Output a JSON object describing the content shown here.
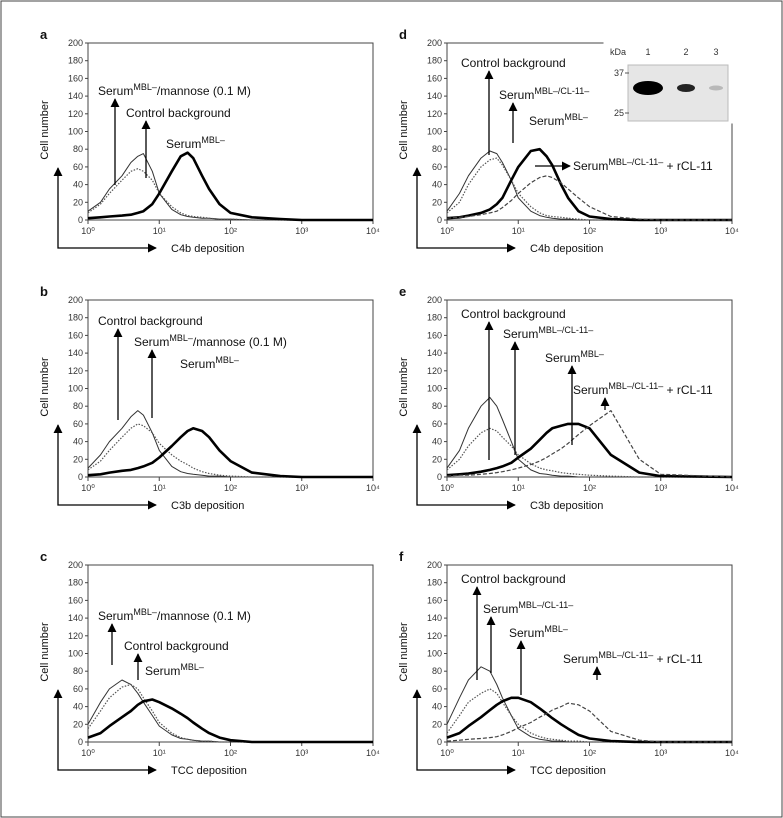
{
  "chart_data": [
    {
      "type": "line",
      "letter": "a",
      "ylabel": "Cell number",
      "xlabel": "C4b deposition",
      "xscale": "log",
      "xlim": [
        1,
        10000
      ],
      "ylim": [
        0,
        200
      ],
      "xticks": [
        {
          "value": 1,
          "label": "10⁰"
        },
        {
          "value": 10,
          "label": "10¹"
        },
        {
          "value": 100,
          "label": "10²"
        },
        {
          "value": 1000,
          "label": "10³"
        },
        {
          "value": 10000,
          "label": "10⁴"
        }
      ],
      "yticks": [
        0,
        20,
        40,
        60,
        80,
        100,
        120,
        140,
        160,
        180,
        200
      ],
      "x": [
        1,
        1.5,
        2,
        3,
        4,
        5,
        6,
        8,
        10,
        15,
        20,
        25,
        30,
        40,
        50,
        70,
        100,
        200,
        500,
        1000,
        10000
      ],
      "series": [
        {
          "style": "thin",
          "color": "#333333",
          "values": [
            10,
            20,
            35,
            50,
            65,
            72,
            75,
            55,
            30,
            12,
            6,
            4,
            3,
            2,
            2,
            1,
            1,
            0,
            0,
            0,
            0
          ]
        },
        {
          "style": "dotted",
          "color": "#555555",
          "values": [
            8,
            18,
            30,
            45,
            55,
            58,
            55,
            45,
            30,
            15,
            8,
            5,
            4,
            3,
            2,
            1,
            1,
            0,
            0,
            0,
            0
          ]
        },
        {
          "style": "thick",
          "color": "#000000",
          "values": [
            2,
            3,
            4,
            5,
            6,
            8,
            10,
            18,
            30,
            55,
            72,
            76,
            70,
            50,
            35,
            18,
            8,
            3,
            1,
            0,
            0
          ]
        }
      ],
      "annotations": [
        {
          "base": "Serum",
          "sup": "MBL–",
          "after": "/mannose (0.1 M)"
        },
        {
          "base": "Control background"
        },
        {
          "base": "Serum",
          "sup": "MBL–"
        }
      ]
    },
    {
      "type": "line",
      "letter": "b",
      "ylabel": "Cell number",
      "xlabel": "C3b deposition",
      "xscale": "log",
      "xlim": [
        1,
        10000
      ],
      "ylim": [
        0,
        200
      ],
      "xticks": [
        {
          "value": 1,
          "label": "10⁰"
        },
        {
          "value": 10,
          "label": "10¹"
        },
        {
          "value": 100,
          "label": "10²"
        },
        {
          "value": 1000,
          "label": "10³"
        },
        {
          "value": 10000,
          "label": "10⁴"
        }
      ],
      "yticks": [
        0,
        20,
        40,
        60,
        80,
        100,
        120,
        140,
        160,
        180,
        200
      ],
      "x": [
        1,
        1.5,
        2,
        3,
        4,
        5,
        6,
        8,
        10,
        15,
        20,
        25,
        30,
        40,
        50,
        70,
        100,
        200,
        500,
        1000,
        10000
      ],
      "series": [
        {
          "style": "thin",
          "color": "#333333",
          "values": [
            10,
            25,
            40,
            55,
            68,
            75,
            70,
            50,
            30,
            12,
            6,
            4,
            3,
            2,
            1,
            1,
            0,
            0,
            0,
            0,
            0
          ]
        },
        {
          "style": "dotted",
          "color": "#555555",
          "values": [
            8,
            18,
            30,
            45,
            55,
            60,
            58,
            50,
            38,
            25,
            18,
            14,
            10,
            6,
            4,
            2,
            1,
            0,
            0,
            0,
            0
          ]
        },
        {
          "style": "thick",
          "color": "#000000",
          "values": [
            2,
            3,
            5,
            7,
            8,
            10,
            12,
            16,
            22,
            35,
            45,
            52,
            55,
            52,
            45,
            30,
            18,
            5,
            1,
            0,
            0
          ]
        }
      ],
      "annotations": [
        {
          "base": "Control background"
        },
        {
          "base": "Serum",
          "sup": "MBL–",
          "after": "/mannose (0.1 M)"
        },
        {
          "base": "Serum",
          "sup": "MBL–"
        }
      ]
    },
    {
      "type": "line",
      "letter": "c",
      "ylabel": "Cell number",
      "xlabel": "TCC deposition",
      "xscale": "log",
      "xlim": [
        1,
        10000
      ],
      "ylim": [
        0,
        200
      ],
      "xticks": [
        {
          "value": 1,
          "label": "10⁰"
        },
        {
          "value": 10,
          "label": "10¹"
        },
        {
          "value": 100,
          "label": "10²"
        },
        {
          "value": 1000,
          "label": "10³"
        },
        {
          "value": 10000,
          "label": "10⁴"
        }
      ],
      "yticks": [
        0,
        20,
        40,
        60,
        80,
        100,
        120,
        140,
        160,
        180,
        200
      ],
      "x": [
        1,
        1.5,
        2,
        3,
        4,
        5,
        6,
        8,
        10,
        15,
        20,
        25,
        30,
        40,
        50,
        70,
        100,
        200,
        500,
        1000,
        10000
      ],
      "series": [
        {
          "style": "thin",
          "color": "#333333",
          "values": [
            20,
            45,
            60,
            70,
            65,
            55,
            45,
            30,
            18,
            8,
            4,
            3,
            2,
            1,
            1,
            0,
            0,
            0,
            0,
            0,
            0
          ]
        },
        {
          "style": "dotted",
          "color": "#555555",
          "values": [
            15,
            35,
            50,
            62,
            65,
            60,
            50,
            35,
            22,
            10,
            5,
            3,
            2,
            1,
            1,
            0,
            0,
            0,
            0,
            0,
            0
          ]
        },
        {
          "style": "thick",
          "color": "#000000",
          "values": [
            5,
            10,
            18,
            28,
            35,
            42,
            46,
            48,
            45,
            38,
            32,
            27,
            22,
            15,
            10,
            5,
            2,
            0,
            0,
            0,
            0
          ]
        }
      ],
      "annotations": [
        {
          "base": "Serum",
          "sup": "MBL–",
          "after": "/mannose (0.1 M)"
        },
        {
          "base": "Control background"
        },
        {
          "base": "Serum",
          "sup": "MBL–"
        }
      ]
    },
    {
      "type": "line",
      "letter": "d",
      "ylabel": "Cell number",
      "xlabel": "C4b deposition",
      "xscale": "log",
      "xlim": [
        1,
        10000
      ],
      "ylim": [
        0,
        200
      ],
      "xticks": [
        {
          "value": 1,
          "label": "10⁰"
        },
        {
          "value": 10,
          "label": "10¹"
        },
        {
          "value": 100,
          "label": "10²"
        },
        {
          "value": 1000,
          "label": "10³"
        },
        {
          "value": 10000,
          "label": "10⁴"
        }
      ],
      "yticks": [
        0,
        20,
        40,
        60,
        80,
        100,
        120,
        140,
        160,
        180,
        200
      ],
      "x": [
        1,
        1.5,
        2,
        3,
        4,
        5,
        6,
        8,
        10,
        15,
        20,
        25,
        30,
        40,
        50,
        70,
        100,
        200,
        500,
        1000,
        10000
      ],
      "series": [
        {
          "style": "thin",
          "color": "#333333",
          "values": [
            10,
            30,
            50,
            70,
            78,
            75,
            65,
            45,
            25,
            10,
            5,
            3,
            2,
            1,
            1,
            0,
            0,
            0,
            0,
            0,
            0
          ]
        },
        {
          "style": "dotted",
          "color": "#555555",
          "values": [
            8,
            20,
            40,
            60,
            68,
            70,
            62,
            45,
            30,
            15,
            8,
            5,
            4,
            3,
            2,
            1,
            0,
            0,
            0,
            0,
            0
          ]
        },
        {
          "style": "thick",
          "color": "#000000",
          "values": [
            2,
            3,
            5,
            8,
            12,
            18,
            25,
            45,
            60,
            78,
            80,
            72,
            62,
            40,
            25,
            10,
            4,
            1,
            0,
            0,
            0
          ]
        },
        {
          "style": "dashed",
          "color": "#444444",
          "values": [
            2,
            3,
            4,
            6,
            8,
            10,
            14,
            22,
            30,
            42,
            48,
            50,
            48,
            42,
            35,
            25,
            15,
            4,
            1,
            0,
            0
          ]
        }
      ],
      "annotations": [
        {
          "base": "Control background"
        },
        {
          "base": "Serum",
          "sup": "MBL–/CL-11–"
        },
        {
          "base": "Serum",
          "sup": "MBL–"
        },
        {
          "base": "Serum",
          "sup": "MBL–/CL-11–",
          "after": " + rCL-11"
        }
      ],
      "inset": {
        "unit": "kDa",
        "lanes": [
          "1",
          "2",
          "3"
        ],
        "markers": [
          37,
          25
        ]
      }
    },
    {
      "type": "line",
      "letter": "e",
      "ylabel": "Cell number",
      "xlabel": "C3b deposition",
      "xscale": "log",
      "xlim": [
        1,
        10000
      ],
      "ylim": [
        0,
        200
      ],
      "xticks": [
        {
          "value": 1,
          "label": "10⁰"
        },
        {
          "value": 10,
          "label": "10¹"
        },
        {
          "value": 100,
          "label": "10²"
        },
        {
          "value": 1000,
          "label": "10³"
        },
        {
          "value": 10000,
          "label": "10⁴"
        }
      ],
      "yticks": [
        0,
        20,
        40,
        60,
        80,
        100,
        120,
        140,
        160,
        180,
        200
      ],
      "x": [
        1,
        1.5,
        2,
        3,
        4,
        5,
        6,
        8,
        10,
        15,
        20,
        25,
        30,
        40,
        50,
        70,
        100,
        200,
        500,
        1000,
        10000
      ],
      "series": [
        {
          "style": "thin",
          "color": "#333333",
          "values": [
            10,
            30,
            55,
            80,
            90,
            80,
            65,
            40,
            20,
            8,
            4,
            3,
            2,
            1,
            1,
            0,
            0,
            0,
            0,
            0,
            0
          ]
        },
        {
          "style": "dotted",
          "color": "#555555",
          "values": [
            8,
            20,
            35,
            50,
            55,
            52,
            45,
            35,
            25,
            15,
            10,
            8,
            7,
            5,
            4,
            3,
            2,
            1,
            0,
            0,
            0
          ]
        },
        {
          "style": "thick",
          "color": "#000000",
          "values": [
            2,
            3,
            4,
            6,
            8,
            10,
            12,
            16,
            22,
            32,
            42,
            50,
            55,
            58,
            60,
            60,
            55,
            25,
            5,
            1,
            0
          ]
        },
        {
          "style": "dashed",
          "color": "#444444",
          "values": [
            1,
            2,
            2,
            3,
            4,
            5,
            6,
            8,
            10,
            14,
            18,
            22,
            26,
            32,
            38,
            48,
            58,
            75,
            20,
            3,
            0
          ]
        }
      ],
      "annotations": [
        {
          "base": "Control background"
        },
        {
          "base": "Serum",
          "sup": "MBL–/CL-11–"
        },
        {
          "base": "Serum",
          "sup": "MBL–"
        },
        {
          "base": "Serum",
          "sup": "MBL–/CL-11–",
          "after": " + rCL-11"
        }
      ]
    },
    {
      "type": "line",
      "letter": "f",
      "ylabel": "Cell number",
      "xlabel": "TCC deposition",
      "xscale": "log",
      "xlim": [
        1,
        10000
      ],
      "ylim": [
        0,
        200
      ],
      "xticks": [
        {
          "value": 1,
          "label": "10⁰"
        },
        {
          "value": 10,
          "label": "10¹"
        },
        {
          "value": 100,
          "label": "10²"
        },
        {
          "value": 1000,
          "label": "10³"
        },
        {
          "value": 10000,
          "label": "10⁴"
        }
      ],
      "yticks": [
        0,
        20,
        40,
        60,
        80,
        100,
        120,
        140,
        160,
        180,
        200
      ],
      "x": [
        1,
        1.5,
        2,
        3,
        4,
        5,
        6,
        8,
        10,
        15,
        20,
        25,
        30,
        40,
        50,
        70,
        100,
        200,
        500,
        1000,
        10000
      ],
      "series": [
        {
          "style": "thin",
          "color": "#333333",
          "values": [
            20,
            50,
            70,
            85,
            80,
            65,
            50,
            30,
            15,
            6,
            3,
            2,
            1,
            1,
            0,
            0,
            0,
            0,
            0,
            0,
            0
          ]
        },
        {
          "style": "dotted",
          "color": "#555555",
          "values": [
            10,
            30,
            45,
            55,
            60,
            55,
            45,
            30,
            20,
            10,
            6,
            4,
            3,
            2,
            1,
            1,
            0,
            0,
            0,
            0,
            0
          ]
        },
        {
          "style": "thick",
          "color": "#000000",
          "values": [
            5,
            10,
            18,
            28,
            36,
            42,
            46,
            50,
            50,
            45,
            38,
            32,
            27,
            20,
            15,
            8,
            4,
            1,
            0,
            0,
            0
          ]
        },
        {
          "style": "dashed",
          "color": "#444444",
          "values": [
            1,
            2,
            3,
            4,
            5,
            6,
            8,
            12,
            16,
            22,
            28,
            32,
            36,
            40,
            44,
            42,
            35,
            12,
            2,
            0,
            0
          ]
        }
      ],
      "annotations": [
        {
          "base": "Control background"
        },
        {
          "base": "Serum",
          "sup": "MBL–/CL-11–"
        },
        {
          "base": "Serum",
          "sup": "MBL–"
        },
        {
          "base": "Serum",
          "sup": "MBL–/CL-11–",
          "after": " + rCL-11"
        }
      ]
    }
  ]
}
